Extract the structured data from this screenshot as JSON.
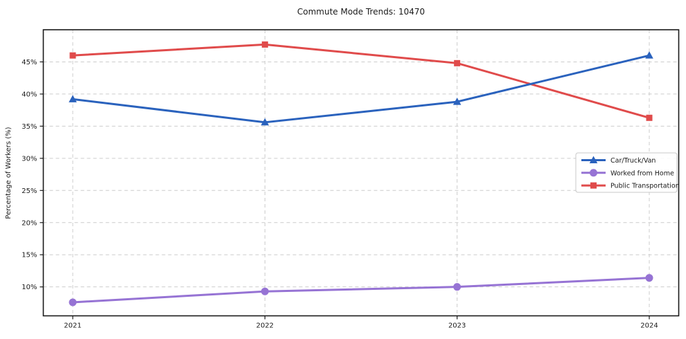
{
  "title": "Commute Mode Trends: 10470",
  "chart_data": {
    "type": "line",
    "title": "Commute Mode Trends: 10470",
    "xlabel": "",
    "ylabel": "Percentage of Workers (%)",
    "categories": [
      "2021",
      "2022",
      "2023",
      "2024"
    ],
    "series": [
      {
        "name": "Car/Truck/Van",
        "marker": "triangle",
        "color": "#2a62bd",
        "values": [
          39.2,
          35.6,
          38.8,
          46.0
        ]
      },
      {
        "name": "Worked from Home",
        "marker": "circle",
        "color": "#9673d4",
        "values": [
          7.6,
          9.3,
          10.0,
          11.4
        ]
      },
      {
        "name": "Public Transportation",
        "marker": "square",
        "color": "#e04b4b",
        "values": [
          46.0,
          47.7,
          44.8,
          36.3
        ]
      }
    ],
    "ylim": [
      5.5,
      50
    ],
    "yticks": [
      10,
      15,
      20,
      25,
      30,
      35,
      40,
      45
    ],
    "ytick_suffix": "%",
    "grid": true,
    "grid_color": "#cccccc",
    "spine_color": "#1a1a1a",
    "legend_position": "right-middle",
    "legend_labels": [
      "Car/Truck/Van",
      "Worked from Home",
      "Public Transportation"
    ]
  }
}
